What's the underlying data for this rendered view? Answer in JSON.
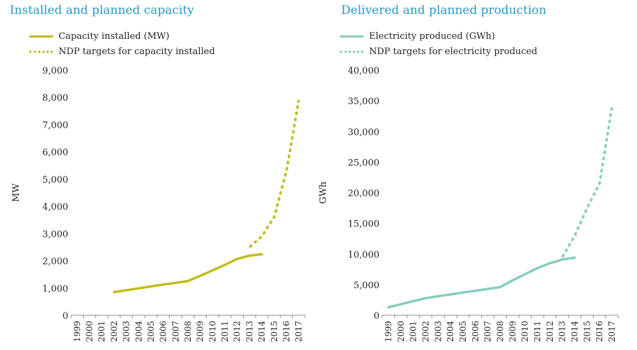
{
  "chart_data": [
    {
      "type": "line",
      "title": "Installed and planned capacity",
      "ylabel": "MW",
      "xlabel": "",
      "ylim": [
        0,
        9000
      ],
      "yticks": [
        0,
        1000,
        2000,
        3000,
        4000,
        5000,
        6000,
        7000,
        8000,
        9000
      ],
      "ytick_labels": [
        "0",
        "1,000",
        "2,000",
        "3,000",
        "4,000",
        "5,000",
        "6,000",
        "7,000",
        "8,000",
        "9,000"
      ],
      "categories": [
        "1999",
        "2000",
        "2001",
        "2002",
        "2003",
        "2004",
        "2005",
        "2006",
        "2007",
        "2008",
        "2009",
        "2010",
        "2011",
        "2012",
        "2013",
        "2014",
        "2015",
        "2016",
        "2017"
      ],
      "grid": false,
      "legend_position": "top-left",
      "color": "#bfbd1a",
      "series": [
        {
          "name": "Capacity installed (MW)",
          "style": "solid",
          "x": [
            "2002",
            "2003",
            "2004",
            "2005",
            "2006",
            "2007",
            "2008",
            "2009",
            "2010",
            "2011",
            "2012",
            "2013",
            "2014"
          ],
          "values": [
            850,
            920,
            990,
            1060,
            1130,
            1190,
            1260,
            1450,
            1650,
            1850,
            2070,
            2190,
            2240
          ]
        },
        {
          "name": "NDP targets for capacity installed",
          "style": "dashed",
          "x": [
            "2013",
            "2014",
            "2015",
            "2016",
            "2017"
          ],
          "values": [
            2500,
            2900,
            3600,
            5300,
            7900
          ]
        }
      ]
    },
    {
      "type": "line",
      "title": "Delivered and planned production",
      "ylabel": "GWh",
      "xlabel": "",
      "ylim": [
        0,
        40000
      ],
      "yticks": [
        0,
        5000,
        10000,
        15000,
        20000,
        25000,
        30000,
        35000,
        40000
      ],
      "ytick_labels": [
        "0",
        "5,000",
        "10,000",
        "15,000",
        "20,000",
        "25,000",
        "30,000",
        "35,000",
        "40,000"
      ],
      "categories": [
        "1999",
        "2000",
        "2001",
        "2002",
        "2003",
        "2004",
        "2005",
        "2006",
        "2007",
        "2008",
        "2009",
        "2010",
        "2011",
        "2012",
        "2013",
        "2014",
        "2015",
        "2016",
        "2017"
      ],
      "grid": false,
      "legend_position": "top-left",
      "color": "#85cdbe",
      "series": [
        {
          "name": "Electricity produced (GWh)",
          "style": "solid",
          "x": [
            "1999",
            "2000",
            "2001",
            "2002",
            "2003",
            "2004",
            "2005",
            "2006",
            "2007",
            "2008",
            "2009",
            "2010",
            "2011",
            "2012",
            "2013",
            "2014"
          ],
          "values": [
            1300,
            1800,
            2300,
            2800,
            3100,
            3400,
            3700,
            4000,
            4300,
            4600,
            5700,
            6700,
            7700,
            8500,
            9100,
            9400
          ]
        },
        {
          "name": "NDP targets for electricity produced",
          "style": "dashed",
          "x": [
            "2013",
            "2014",
            "2015",
            "2016",
            "2017"
          ],
          "values": [
            9500,
            13000,
            17500,
            21500,
            34000
          ]
        }
      ]
    }
  ]
}
